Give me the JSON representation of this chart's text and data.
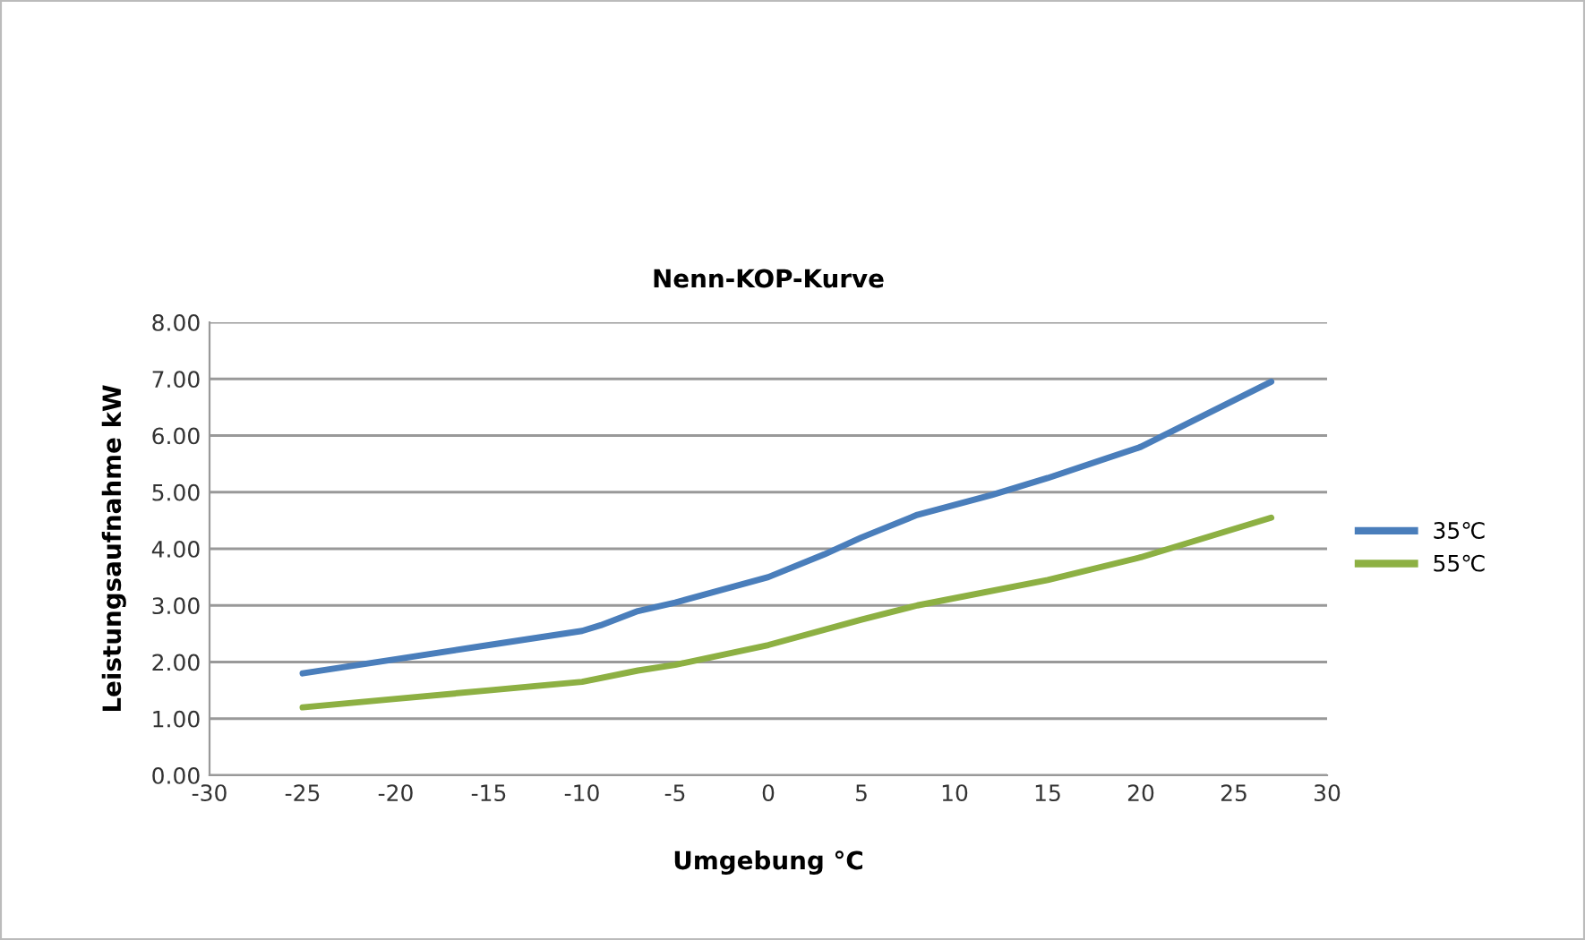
{
  "chart_data": {
    "type": "line",
    "title": "Nenn-KOP-Kurve",
    "xlabel": "Umgebung °C",
    "ylabel": "Leistungsaufnahme kW",
    "xlim": [
      -30,
      30
    ],
    "xticks": [
      -30,
      -25,
      -20,
      -15,
      -10,
      -5,
      0,
      5,
      10,
      15,
      20,
      25,
      30
    ],
    "ylim": [
      0,
      8
    ],
    "yticks": [
      {
        "value": 0,
        "label": "0.00"
      },
      {
        "value": 1,
        "label": "1.00"
      },
      {
        "value": 2,
        "label": "2.00"
      },
      {
        "value": 3,
        "label": "3.00"
      },
      {
        "value": 4,
        "label": "4.00"
      },
      {
        "value": 5,
        "label": "5.00"
      },
      {
        "value": 6,
        "label": "6.00"
      },
      {
        "value": 7,
        "label": "7.00"
      },
      {
        "value": 8,
        "label": "8.00"
      }
    ],
    "grid": "y",
    "legend": "right",
    "marker": "none",
    "line_style": "solid",
    "series": [
      {
        "name": "35℃",
        "color": "#4a7ebb",
        "x": [
          -25,
          -20,
          -15,
          -10,
          -9,
          -7,
          -5,
          0,
          3,
          5,
          8,
          12,
          15,
          20,
          27
        ],
        "values": [
          1.8,
          2.05,
          2.3,
          2.55,
          2.65,
          2.9,
          3.05,
          3.5,
          3.9,
          4.2,
          4.6,
          4.95,
          5.25,
          5.8,
          6.95
        ]
      },
      {
        "name": "55℃",
        "color": "#8db043",
        "x": [
          -25,
          -20,
          -15,
          -10,
          -7,
          -5,
          0,
          5,
          8,
          15,
          20,
          27
        ],
        "values": [
          1.2,
          1.35,
          1.5,
          1.65,
          1.85,
          1.95,
          2.3,
          2.75,
          3.0,
          3.45,
          3.85,
          4.55
        ]
      }
    ]
  }
}
